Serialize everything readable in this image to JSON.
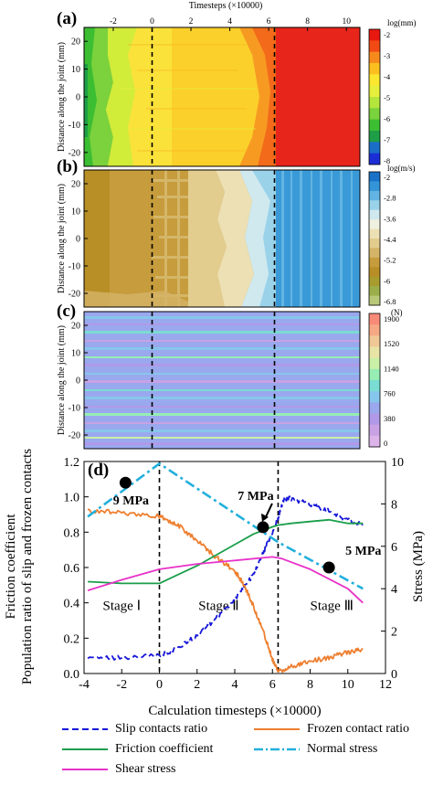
{
  "panels": {
    "a": {
      "label": "(a)",
      "top_axis_title": "Timesteps (×10000)",
      "top_ticks": [
        "-2",
        "0",
        "2",
        "4",
        "6",
        "8",
        "10"
      ],
      "ylabel": "Distance along the joint (mm)",
      "yticks": [
        "20",
        "10",
        "0",
        "-10",
        "-20"
      ],
      "colorbar_title": "log(mm)",
      "colorbar_ticks": [
        "-2",
        "-3",
        "-4",
        "-5",
        "-6",
        "-7",
        "-8"
      ],
      "colorbar_colors": [
        "#e81810",
        "#f24a14",
        "#f78a1c",
        "#fbc020",
        "#fbe630",
        "#e6f03c",
        "#b4e63c",
        "#7ad23c",
        "#3cbe32",
        "#1e9e46",
        "#1a6ec8",
        "#1b2ed6"
      ]
    },
    "b": {
      "label": "(b)",
      "ylabel": "Distance along the joint (mm)",
      "yticks": [
        "20",
        "10",
        "0",
        "-10",
        "-20"
      ],
      "colorbar_title": "log(m/s)",
      "colorbar_ticks": [
        "-2",
        "-2.8",
        "-3.6",
        "-4.4",
        "-5.2",
        "-6",
        "-6.8"
      ],
      "colorbar_colors": [
        "#1a72c8",
        "#3494d8",
        "#62b4e2",
        "#9ad2ea",
        "#cfe9ee",
        "#f0f0e0",
        "#ece0b4",
        "#e2cc8e",
        "#d4b466",
        "#c69c3c",
        "#b88e26",
        "#a89c2e",
        "#9cae4a",
        "#b8c878"
      ]
    },
    "c": {
      "label": "(c)",
      "ylabel": "Distance along the joint (mm)",
      "yticks": [
        "20",
        "10",
        "0",
        "-10",
        "-20"
      ],
      "colorbar_title": "(N)",
      "colorbar_ticks": [
        "1900",
        "1520",
        "1140",
        "760",
        "380",
        "0"
      ],
      "colorbar_colors": [
        "#f88a78",
        "#f6a884",
        "#f0c896",
        "#e8e4a6",
        "#c8f0a6",
        "#96eeb4",
        "#7adcd2",
        "#86c6ec",
        "#9aa8ee",
        "#b09ae8",
        "#c8a2e4",
        "#dcb4ea"
      ]
    }
  },
  "chart_data": {
    "type": "line",
    "panel_label": "(d)",
    "xlabel": "Calculation timesteps (×10000)",
    "ylabel_left_1": "Friction coefficient",
    "ylabel_left_2": "Population ratio of slip and frozen contacts",
    "ylabel_right": "Stress (MPa)",
    "xlim": [
      -4,
      12
    ],
    "ylim_left": [
      0,
      1.2
    ],
    "ylim_right": [
      0,
      10
    ],
    "xticks": [
      "-4",
      "-2",
      "0",
      "2",
      "4",
      "6",
      "8",
      "10",
      "12"
    ],
    "yticks_left": [
      "0.0",
      "0.2",
      "0.4",
      "0.6",
      "0.8",
      "1.0",
      "1.2"
    ],
    "yticks_right": [
      "0",
      "2",
      "4",
      "6",
      "8",
      "10"
    ],
    "stage_boundaries": [
      0,
      6.3
    ],
    "stage_labels": [
      "Stage Ⅰ",
      "Stage Ⅱ",
      "Stage Ⅲ"
    ],
    "series": [
      {
        "name": "Slip contacts ratio",
        "color": "#1515d8",
        "style": "dashed",
        "axis": "left",
        "x": [
          -3.8,
          -2,
          0,
          1,
          2,
          3,
          4,
          5,
          5.5,
          6,
          6.3,
          6.6,
          7,
          8,
          9,
          10,
          10.8
        ],
        "y": [
          0.09,
          0.09,
          0.1,
          0.14,
          0.22,
          0.31,
          0.42,
          0.56,
          0.68,
          0.8,
          0.88,
          0.99,
          0.99,
          0.96,
          0.92,
          0.87,
          0.84
        ]
      },
      {
        "name": "Frozen contact ratio",
        "color": "#ee7f30",
        "style": "solid",
        "axis": "left",
        "x": [
          -3.8,
          -2,
          0,
          1,
          2,
          3,
          4,
          4.5,
          5,
          5.5,
          6,
          6.3,
          7,
          8,
          9,
          10,
          10.8
        ],
        "y": [
          0.92,
          0.91,
          0.89,
          0.84,
          0.75,
          0.66,
          0.58,
          0.5,
          0.38,
          0.24,
          0.08,
          0.01,
          0.04,
          0.07,
          0.09,
          0.12,
          0.14
        ]
      },
      {
        "name": "Friction coefficient",
        "color": "#1a9e4a",
        "style": "solid",
        "axis": "left",
        "x": [
          -3.8,
          -2,
          0,
          1,
          2,
          3,
          4,
          5,
          6,
          6.3,
          7,
          8,
          9,
          10,
          10.8
        ],
        "y": [
          0.52,
          0.51,
          0.51,
          0.56,
          0.61,
          0.67,
          0.73,
          0.79,
          0.83,
          0.84,
          0.85,
          0.86,
          0.87,
          0.85,
          0.85
        ]
      },
      {
        "name": "Normal stress",
        "color": "#22b0dc",
        "style": "dashdot",
        "axis": "right",
        "x": [
          -3.8,
          0,
          6.3,
          10.8
        ],
        "y": [
          7.4,
          9.9,
          6.2,
          4.0
        ]
      },
      {
        "name": "Shear stress",
        "color": "#e832c8",
        "style": "solid",
        "axis": "left",
        "x": [
          -3.8,
          -2,
          0,
          2,
          4,
          6,
          6.5,
          8,
          10,
          10.8
        ],
        "y": [
          0.47,
          0.53,
          0.59,
          0.62,
          0.64,
          0.66,
          0.65,
          0.59,
          0.48,
          0.4
        ]
      }
    ],
    "annotations": [
      {
        "text": "9 MPa",
        "x": -1.8,
        "y_right": 9.0
      },
      {
        "text": "7 MPa",
        "x": 5.5,
        "y_right": 6.9
      },
      {
        "text": "5 MPa",
        "x": 9.0,
        "y_right": 5.0
      }
    ]
  }
}
